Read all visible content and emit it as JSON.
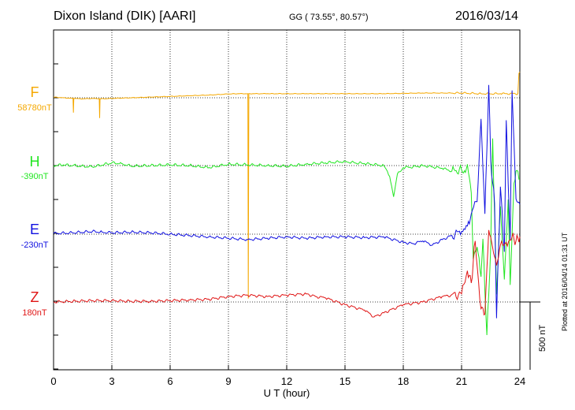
{
  "header": {
    "station": "Dixon Island (DIK)  [AARI]",
    "coords": "GG ( 73.55°,  80.57°)",
    "date": "2016/03/14"
  },
  "stamp": "Plotted at 2016/04/14 01:31  UT",
  "chart_data": {
    "type": "line",
    "xlabel": "U T (hour)",
    "xlim": [
      0,
      24
    ],
    "xticks": [
      0,
      3,
      6,
      9,
      12,
      15,
      18,
      21,
      24
    ],
    "scale_bar_label": "500 nT",
    "scale_bar_nT": 500,
    "series": [
      {
        "name": "F",
        "baseline_label": "58780nT",
        "color": "#f5a800",
        "points": [
          [
            0,
            5
          ],
          [
            0.5,
            0
          ],
          [
            1.0,
            -5
          ],
          [
            1.02,
            -110
          ],
          [
            1.04,
            -5
          ],
          [
            1.5,
            -8
          ],
          [
            2.0,
            -5
          ],
          [
            2.35,
            -8
          ],
          [
            2.37,
            -150
          ],
          [
            2.39,
            -8
          ],
          [
            3,
            -5
          ],
          [
            4,
            0
          ],
          [
            5,
            5
          ],
          [
            6,
            10
          ],
          [
            7,
            15
          ],
          [
            8,
            20
          ],
          [
            9,
            28
          ],
          [
            9.5,
            30
          ],
          [
            10.0,
            30
          ],
          [
            10.02,
            -1480
          ],
          [
            10.05,
            30
          ],
          [
            11,
            30
          ],
          [
            13,
            30
          ],
          [
            15,
            30
          ],
          [
            17,
            30
          ],
          [
            19,
            35
          ],
          [
            21,
            35
          ],
          [
            22,
            30
          ],
          [
            23,
            30
          ],
          [
            23.9,
            30
          ],
          [
            23.95,
            180
          ],
          [
            24,
            190
          ]
        ]
      },
      {
        "name": "H",
        "baseline_label": "-390nT",
        "color": "#22e622",
        "points": [
          [
            0,
            0
          ],
          [
            0.5,
            5
          ],
          [
            1,
            0
          ],
          [
            2,
            -10
          ],
          [
            3,
            20
          ],
          [
            3.5,
            15
          ],
          [
            4,
            -5
          ],
          [
            5,
            0
          ],
          [
            6,
            5
          ],
          [
            7,
            0
          ],
          [
            8,
            -15
          ],
          [
            9,
            10
          ],
          [
            10,
            5
          ],
          [
            11,
            0
          ],
          [
            12,
            -5
          ],
          [
            13,
            10
          ],
          [
            14,
            20
          ],
          [
            15,
            30
          ],
          [
            15.5,
            20
          ],
          [
            16,
            15
          ],
          [
            17,
            0
          ],
          [
            17.3,
            -80
          ],
          [
            17.5,
            -230
          ],
          [
            17.7,
            -60
          ],
          [
            18,
            -15
          ],
          [
            18.5,
            -10
          ],
          [
            19,
            0
          ],
          [
            20,
            -20
          ],
          [
            20.5,
            -40
          ],
          [
            21,
            -30
          ],
          [
            21.2,
            -50
          ],
          [
            21.3,
            10
          ],
          [
            21.5,
            -200
          ],
          [
            21.6,
            -690
          ],
          [
            21.8,
            -600
          ],
          [
            22.0,
            -820
          ],
          [
            22.1,
            -540
          ],
          [
            22.3,
            -1250
          ],
          [
            22.5,
            -600
          ],
          [
            22.6,
            200
          ],
          [
            22.8,
            -950
          ],
          [
            23.0,
            -300
          ],
          [
            23.2,
            -840
          ],
          [
            23.4,
            -250
          ],
          [
            23.5,
            -880
          ],
          [
            23.7,
            -130
          ],
          [
            23.8,
            -40
          ],
          [
            24,
            -100
          ]
        ]
      },
      {
        "name": "E",
        "baseline_label": "-230nT",
        "color": "#1010e0",
        "points": [
          [
            0,
            5
          ],
          [
            1,
            10
          ],
          [
            2,
            20
          ],
          [
            2.5,
            15
          ],
          [
            3,
            10
          ],
          [
            4,
            15
          ],
          [
            5,
            10
          ],
          [
            6,
            0
          ],
          [
            7,
            -10
          ],
          [
            8,
            -20
          ],
          [
            9,
            -30
          ],
          [
            10,
            -40
          ],
          [
            11,
            -30
          ],
          [
            12,
            -20
          ],
          [
            13,
            -30
          ],
          [
            14,
            -20
          ],
          [
            15,
            -20
          ],
          [
            16,
            -25
          ],
          [
            17,
            -20
          ],
          [
            18,
            -60
          ],
          [
            18.5,
            -70
          ],
          [
            19,
            -50
          ],
          [
            19.5,
            -80
          ],
          [
            20,
            -40
          ],
          [
            20.5,
            -10
          ],
          [
            21,
            20
          ],
          [
            21.3,
            60
          ],
          [
            21.5,
            150
          ],
          [
            21.8,
            240
          ],
          [
            22.0,
            850
          ],
          [
            22.2,
            150
          ],
          [
            22.4,
            1100
          ],
          [
            22.5,
            540
          ],
          [
            22.7,
            230
          ],
          [
            22.8,
            -620
          ],
          [
            23.0,
            350
          ],
          [
            23.2,
            -130
          ],
          [
            23.3,
            840
          ],
          [
            23.5,
            -40
          ],
          [
            23.6,
            1060
          ],
          [
            23.8,
            260
          ],
          [
            24,
            220
          ]
        ]
      },
      {
        "name": "Z",
        "baseline_label": "180nT",
        "color": "#e01515",
        "points": [
          [
            0,
            0
          ],
          [
            1,
            5
          ],
          [
            2,
            10
          ],
          [
            3,
            10
          ],
          [
            4,
            5
          ],
          [
            5,
            5
          ],
          [
            6,
            10
          ],
          [
            7,
            15
          ],
          [
            8,
            20
          ],
          [
            9,
            40
          ],
          [
            10,
            50
          ],
          [
            11,
            40
          ],
          [
            12,
            50
          ],
          [
            13,
            60
          ],
          [
            13.5,
            40
          ],
          [
            14,
            30
          ],
          [
            15,
            -20
          ],
          [
            16,
            -60
          ],
          [
            16.5,
            -110
          ],
          [
            17,
            -80
          ],
          [
            18,
            -20
          ],
          [
            19,
            0
          ],
          [
            20,
            40
          ],
          [
            21,
            60
          ],
          [
            21.3,
            230
          ],
          [
            21.5,
            140
          ],
          [
            21.7,
            450
          ],
          [
            22.0,
            -50
          ],
          [
            22.2,
            -90
          ],
          [
            22.4,
            530
          ],
          [
            22.6,
            400
          ],
          [
            22.8,
            270
          ],
          [
            23.0,
            420
          ],
          [
            23.3,
            440
          ],
          [
            23.6,
            480
          ],
          [
            23.8,
            450
          ],
          [
            24,
            480
          ]
        ]
      }
    ]
  }
}
